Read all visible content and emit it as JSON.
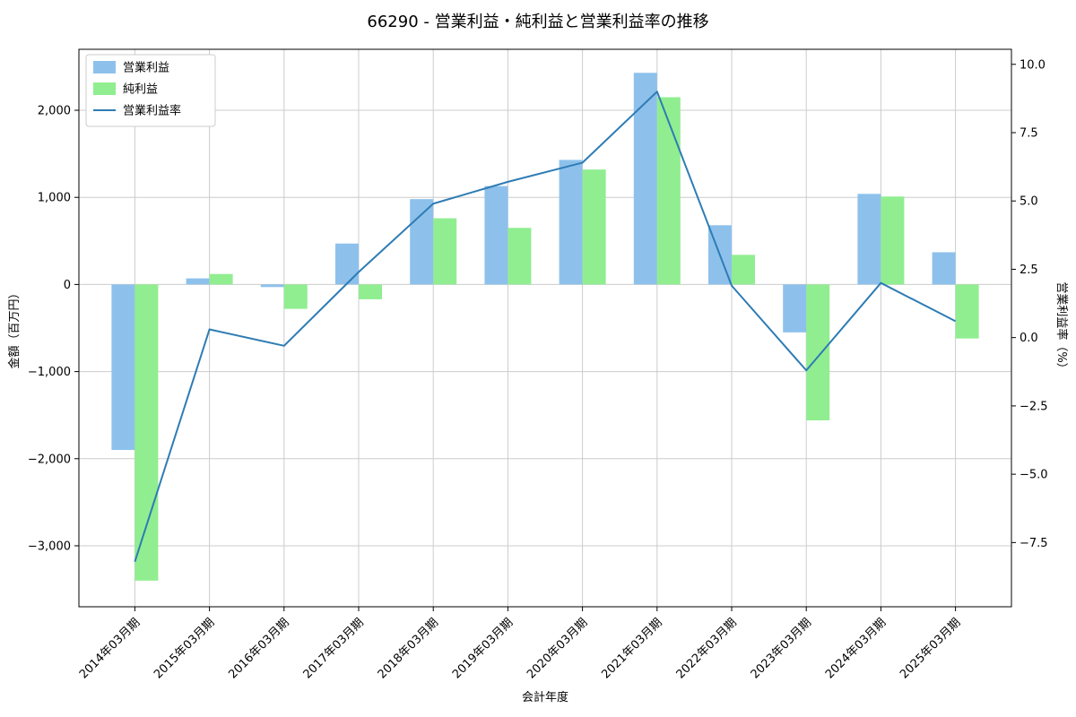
{
  "chart_data": {
    "type": "bar",
    "title": "66290 - 営業利益・純利益と営業利益率の推移",
    "xlabel": "会計年度",
    "ylabel_left": "金額（百万円）",
    "ylabel_right": "営業利益率（%）",
    "categories": [
      "2014年03月期",
      "2015年03月期",
      "2016年03月期",
      "2017年03月期",
      "2018年03月期",
      "2019年03月期",
      "2020年03月期",
      "2021年03月期",
      "2022年03月期",
      "2023年03月期",
      "2024年03月期",
      "2025年03月期"
    ],
    "series": [
      {
        "key": "operating-income",
        "name": "営業利益",
        "type": "bar",
        "axis": "left",
        "color": "#8dc1ec",
        "values": [
          -1900,
          70,
          -30,
          470,
          980,
          1130,
          1430,
          2430,
          680,
          -550,
          1040,
          370
        ]
      },
      {
        "key": "net-income",
        "name": "純利益",
        "type": "bar",
        "axis": "left",
        "color": "#90ee90",
        "values": [
          -3400,
          120,
          -280,
          -170,
          760,
          650,
          1320,
          2150,
          340,
          -1560,
          1010,
          -620
        ]
      },
      {
        "key": "operating-margin",
        "name": "営業利益率",
        "type": "line",
        "axis": "right",
        "color": "#2e7cb4",
        "values": [
          -8.2,
          0.3,
          -0.3,
          2.4,
          4.9,
          5.7,
          6.4,
          9.0,
          1.9,
          -1.2,
          2.0,
          0.6
        ]
      }
    ],
    "left_ylim": [
      -3700,
      2700
    ],
    "right_ylim": [
      -9.85,
      10.55
    ],
    "left_ticks": [
      -3000,
      -2000,
      -1000,
      0,
      1000,
      2000
    ],
    "right_ticks": [
      -7.5,
      -5.0,
      -2.5,
      0.0,
      2.5,
      5.0,
      7.5,
      10.0
    ],
    "grid": true,
    "grid_color": "#cccccc",
    "legend_position": "upper-left"
  }
}
